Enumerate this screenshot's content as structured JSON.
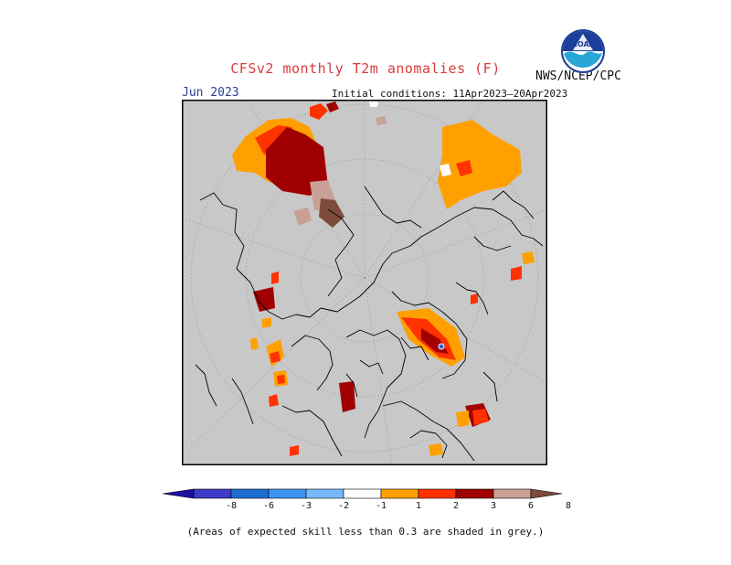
{
  "header": {
    "title": "CFSv2 monthly T2m anomalies (F)",
    "org_label": "NWS/NCEP/CPC",
    "logo_text": "NOAA",
    "month": "Jun 2023",
    "initial_conditions": "Initial conditions: 11Apr2023–20Apr2023"
  },
  "map": {
    "projection": "north-polar-stereographic",
    "background_color": "#c8c8c8",
    "land_outline_color": "#000000",
    "grid_color": "#9a9a9a"
  },
  "legend": {
    "labels": [
      "-8",
      "-6",
      "-3",
      "-2",
      "-1",
      "1",
      "2",
      "3",
      "6",
      "8"
    ],
    "colors": [
      "#1c10a0",
      "#3c3cc8",
      "#1e6ed2",
      "#3c96f0",
      "#78b9fa",
      "#ffffff",
      "#ffa000",
      "#ff3200",
      "#a00000",
      "#c8a096",
      "#7d4b3c"
    ]
  },
  "footnote": "(Areas of expected skill less than 0.3 are shaded in grey.)"
}
